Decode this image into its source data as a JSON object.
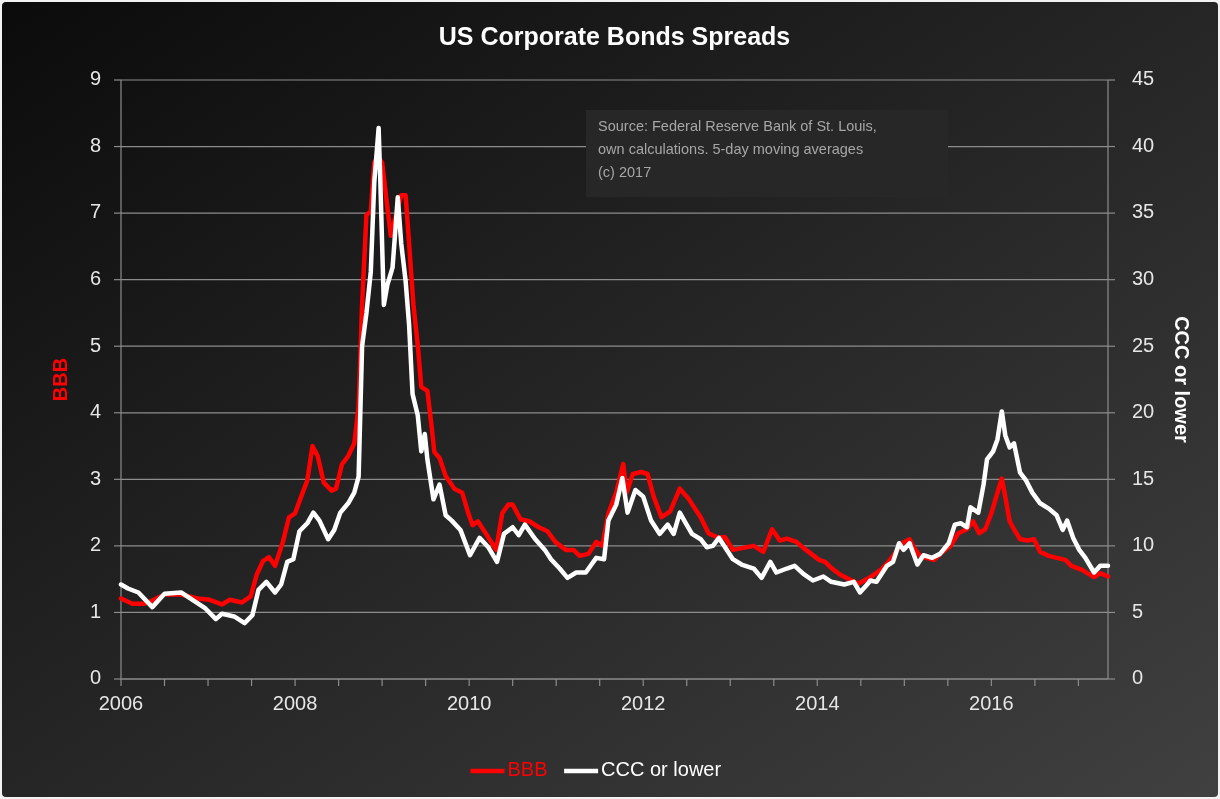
{
  "chart_data": {
    "type": "line",
    "title": "US Corporate Bonds Spreads",
    "ylabel": "BBB",
    "y2label": "CCC or lower",
    "annotations": [
      "Source: Federal Reserve Bank of St. Louis,\nown calculations. 5-day moving averages\n(c) 2017"
    ],
    "xlim": [
      2006,
      2017.34
    ],
    "xticks": [
      2006,
      {
        "value": 2006.5,
        "label": null
      },
      {
        "value": 2007,
        "label": null
      },
      {
        "value": 2007.5,
        "label": null
      },
      2008,
      {
        "value": 2008.5,
        "label": null
      },
      {
        "value": 2009,
        "label": null
      },
      {
        "value": 2009.5,
        "label": null
      },
      2010,
      {
        "value": 2010.5,
        "label": null
      },
      {
        "value": 2011,
        "label": null
      },
      {
        "value": 2011.5,
        "label": null
      },
      2012,
      {
        "value": 2012.5,
        "label": null
      },
      {
        "value": 2013,
        "label": null
      },
      {
        "value": 2013.5,
        "label": null
      },
      2014,
      {
        "value": 2014.5,
        "label": null
      },
      {
        "value": 2015,
        "label": null
      },
      {
        "value": 2015.5,
        "label": null
      },
      2016,
      {
        "value": 2016.5,
        "label": null
      },
      {
        "value": 2017,
        "label": null
      }
    ],
    "ylim": [
      0,
      9
    ],
    "yticks": [
      0,
      1,
      2,
      3,
      4,
      5,
      6,
      7,
      8,
      9
    ],
    "y2lim": [
      0,
      45
    ],
    "y2ticks": [
      0,
      5,
      10,
      15,
      20,
      25,
      30,
      35,
      40,
      45
    ],
    "grid": "y",
    "legend": "bottom",
    "series": [
      {
        "name": "BBB",
        "color": "#ff0000",
        "x": [
          2006.0,
          2006.13,
          2006.27,
          2006.36,
          2006.5,
          2006.69,
          2006.88,
          2007.02,
          2007.16,
          2007.25,
          2007.39,
          2007.49,
          2007.56,
          2007.63,
          2007.7,
          2007.77,
          2007.86,
          2007.93,
          2008.0,
          2008.07,
          2008.14,
          2008.2,
          2008.26,
          2008.33,
          2008.42,
          2008.47,
          2008.54,
          2008.61,
          2008.68,
          2008.73,
          2008.77,
          2008.82,
          2008.87,
          2008.91,
          2008.95,
          2009.0,
          2009.06,
          2009.1,
          2009.17,
          2009.22,
          2009.27,
          2009.31,
          2009.36,
          2009.41,
          2009.45,
          2009.52,
          2009.57,
          2009.6,
          2009.66,
          2009.73,
          2009.83,
          2009.92,
          2009.99,
          2010.04,
          2010.1,
          2010.19,
          2010.31,
          2010.38,
          2010.45,
          2010.5,
          2010.59,
          2010.69,
          2010.8,
          2010.9,
          2010.99,
          2011.11,
          2011.2,
          2011.27,
          2011.37,
          2011.46,
          2011.53,
          2011.6,
          2011.69,
          2011.77,
          2011.81,
          2011.88,
          2011.98,
          2012.05,
          2012.12,
          2012.21,
          2012.31,
          2012.42,
          2012.52,
          2012.66,
          2012.75,
          2012.85,
          2012.94,
          2013.03,
          2013.15,
          2013.27,
          2013.38,
          2013.48,
          2013.57,
          2013.65,
          2013.76,
          2013.84,
          2013.93,
          2014.02,
          2014.09,
          2014.16,
          2014.26,
          2014.35,
          2014.47,
          2014.54,
          2014.61,
          2014.73,
          2014.82,
          2014.92,
          2014.99,
          2015.06,
          2015.11,
          2015.18,
          2015.25,
          2015.34,
          2015.44,
          2015.53,
          2015.62,
          2015.72,
          2015.79,
          2015.86,
          2015.93,
          2016.0,
          2016.07,
          2016.12,
          2016.16,
          2016.21,
          2016.26,
          2016.33,
          2016.42,
          2016.49,
          2016.56,
          2016.66,
          2016.75,
          2016.85,
          2016.92,
          2017.04,
          2017.18,
          2017.25,
          2017.34
        ],
        "values": [
          1.21,
          1.13,
          1.13,
          1.18,
          1.27,
          1.27,
          1.21,
          1.19,
          1.12,
          1.19,
          1.15,
          1.24,
          1.57,
          1.77,
          1.83,
          1.7,
          2.06,
          2.43,
          2.49,
          2.74,
          2.98,
          3.5,
          3.35,
          2.95,
          2.83,
          2.86,
          3.23,
          3.35,
          3.54,
          4.09,
          5.62,
          6.97,
          7.03,
          7.76,
          7.85,
          7.76,
          7.09,
          6.66,
          7.03,
          7.27,
          7.27,
          6.54,
          5.62,
          5.01,
          4.39,
          4.33,
          3.78,
          3.41,
          3.32,
          3.05,
          2.86,
          2.8,
          2.49,
          2.31,
          2.37,
          2.19,
          1.94,
          2.49,
          2.62,
          2.62,
          2.4,
          2.37,
          2.28,
          2.22,
          2.06,
          1.94,
          1.94,
          1.85,
          1.88,
          2.06,
          2.0,
          2.49,
          2.8,
          3.23,
          2.8,
          3.08,
          3.11,
          3.08,
          2.74,
          2.43,
          2.52,
          2.86,
          2.71,
          2.43,
          2.19,
          2.13,
          2.13,
          1.94,
          1.97,
          2.0,
          1.91,
          2.25,
          2.08,
          2.11,
          2.06,
          1.97,
          1.88,
          1.79,
          1.76,
          1.67,
          1.57,
          1.51,
          1.43,
          1.48,
          1.53,
          1.64,
          1.76,
          1.94,
          2.05,
          2.1,
          1.97,
          1.85,
          1.82,
          1.79,
          1.91,
          2.0,
          2.19,
          2.25,
          2.37,
          2.19,
          2.25,
          2.49,
          2.8,
          3.01,
          2.74,
          2.37,
          2.25,
          2.1,
          2.08,
          2.1,
          1.91,
          1.85,
          1.82,
          1.79,
          1.7,
          1.64,
          1.53,
          1.59,
          1.54
        ]
      },
      {
        "name": "CCC or lower",
        "color": "#ffffff",
        "axis": "y2",
        "x": [
          2006.0,
          2006.08,
          2006.2,
          2006.36,
          2006.5,
          2006.69,
          2006.83,
          2006.97,
          2007.09,
          2007.16,
          2007.3,
          2007.42,
          2007.51,
          2007.58,
          2007.67,
          2007.77,
          2007.84,
          2007.91,
          2007.98,
          2008.05,
          2008.14,
          2008.21,
          2008.28,
          2008.38,
          2008.45,
          2008.52,
          2008.61,
          2008.68,
          2008.73,
          2008.77,
          2008.82,
          2008.87,
          2008.91,
          2008.96,
          2008.98,
          2009.02,
          2009.06,
          2009.12,
          2009.18,
          2009.22,
          2009.27,
          2009.31,
          2009.35,
          2009.41,
          2009.45,
          2009.49,
          2009.52,
          2009.59,
          2009.66,
          2009.73,
          2009.8,
          2009.9,
          2010.01,
          2010.12,
          2010.22,
          2010.32,
          2010.4,
          2010.5,
          2010.57,
          2010.64,
          2010.76,
          2010.87,
          2010.94,
          2011.04,
          2011.13,
          2011.23,
          2011.34,
          2011.46,
          2011.55,
          2011.6,
          2011.69,
          2011.76,
          2011.82,
          2011.91,
          2012.0,
          2012.09,
          2012.19,
          2012.28,
          2012.35,
          2012.42,
          2012.49,
          2012.56,
          2012.66,
          2012.73,
          2012.8,
          2012.87,
          2012.94,
          2013.03,
          2013.13,
          2013.27,
          2013.36,
          2013.46,
          2013.53,
          2013.65,
          2013.74,
          2013.84,
          2013.95,
          2014.07,
          2014.16,
          2014.31,
          2014.42,
          2014.49,
          2014.56,
          2014.61,
          2014.68,
          2014.8,
          2014.87,
          2014.94,
          2014.99,
          2015.06,
          2015.15,
          2015.22,
          2015.32,
          2015.41,
          2015.51,
          2015.58,
          2015.65,
          2015.72,
          2015.76,
          2015.85,
          2015.91,
          2015.95,
          2016.02,
          2016.07,
          2016.12,
          2016.16,
          2016.21,
          2016.26,
          2016.33,
          2016.4,
          2016.47,
          2016.56,
          2016.66,
          2016.75,
          2016.82,
          2016.87,
          2016.94,
          2017.01,
          2017.08,
          2017.18,
          2017.25,
          2017.34
        ],
        "values": [
          7.1,
          6.8,
          6.5,
          5.4,
          6.4,
          6.5,
          5.9,
          5.3,
          4.5,
          4.9,
          4.7,
          4.2,
          4.8,
          6.7,
          7.3,
          6.5,
          7.1,
          8.8,
          9.0,
          11.1,
          11.7,
          12.5,
          11.9,
          10.5,
          11.2,
          12.5,
          13.2,
          14.0,
          15.2,
          25.0,
          27.5,
          30.6,
          37.3,
          41.4,
          37.3,
          28.1,
          29.6,
          30.9,
          36.2,
          32.7,
          29.9,
          26.6,
          21.4,
          19.8,
          17.1,
          18.4,
          16.5,
          13.5,
          14.6,
          12.3,
          11.9,
          11.2,
          9.3,
          10.6,
          9.9,
          8.8,
          10.9,
          11.4,
          10.8,
          11.6,
          10.5,
          9.7,
          9.0,
          8.3,
          7.6,
          8.0,
          8.0,
          9.1,
          9.0,
          11.9,
          13.1,
          15.1,
          12.5,
          14.2,
          13.7,
          11.9,
          10.9,
          11.6,
          10.9,
          12.5,
          11.7,
          10.9,
          10.5,
          9.9,
          10.0,
          10.6,
          9.9,
          9.0,
          8.6,
          8.3,
          7.6,
          8.8,
          8.0,
          8.3,
          8.5,
          7.9,
          7.4,
          7.7,
          7.3,
          7.1,
          7.3,
          6.5,
          7.0,
          7.4,
          7.3,
          8.5,
          8.8,
          10.2,
          9.7,
          10.2,
          8.6,
          9.3,
          9.1,
          9.4,
          10.2,
          11.6,
          11.7,
          11.4,
          12.9,
          12.5,
          14.6,
          16.5,
          17.1,
          18.0,
          20.1,
          18.3,
          17.4,
          17.7,
          15.5,
          14.9,
          14.0,
          13.2,
          12.8,
          12.3,
          11.2,
          11.9,
          10.6,
          9.7,
          9.1,
          8.0,
          8.5,
          8.5
        ]
      }
    ]
  }
}
